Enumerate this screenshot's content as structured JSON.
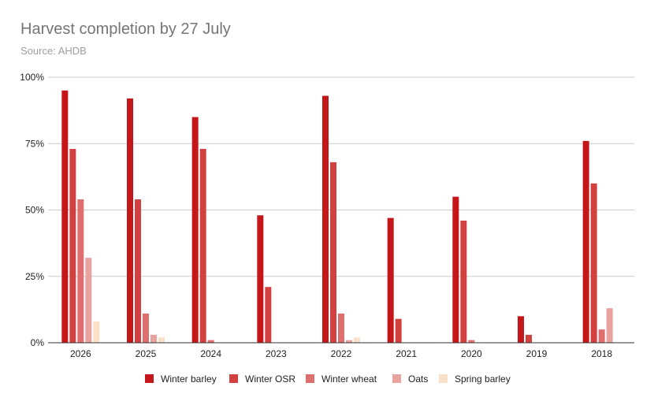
{
  "chart_data": {
    "type": "bar",
    "title": "Harvest completion by 27 July",
    "subtitle": "Source: AHDB",
    "xlabel": "",
    "ylabel": "",
    "categories": [
      "2026",
      "2025",
      "2024",
      "2023",
      "2022",
      "2021",
      "2020",
      "2019",
      "2018"
    ],
    "ylim": [
      0,
      100
    ],
    "yticks": [
      0,
      25,
      50,
      75,
      100
    ],
    "ytick_labels": [
      "0%",
      "25%",
      "50%",
      "75%",
      "100%"
    ],
    "grid": true,
    "legend": "bottom",
    "series": [
      {
        "name": "Winter barley",
        "color": "#c5171a",
        "values": [
          95,
          92,
          85,
          48,
          93,
          47,
          55,
          10,
          76
        ]
      },
      {
        "name": "Winter OSR",
        "color": "#d2413f",
        "values": [
          73,
          54,
          73,
          21,
          68,
          9,
          46,
          3,
          60
        ]
      },
      {
        "name": "Winter wheat",
        "color": "#df6e6e",
        "values": [
          54,
          11,
          1,
          0,
          11,
          0,
          1,
          0,
          5
        ]
      },
      {
        "name": "Oats",
        "color": "#e8a3a1",
        "values": [
          32,
          3,
          0,
          0,
          1,
          0,
          0,
          0,
          13
        ]
      },
      {
        "name": "Spring barley",
        "color": "#fbe0c8",
        "values": [
          8,
          2,
          0,
          0,
          2,
          0,
          0,
          0,
          0
        ]
      }
    ]
  }
}
